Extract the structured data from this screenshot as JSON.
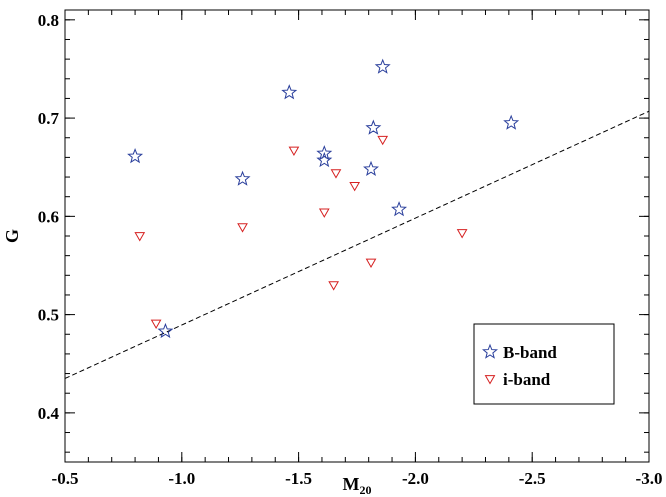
{
  "chart_data": {
    "type": "scatter",
    "xlabel": "M",
    "xlabel_sub": "20",
    "ylabel": "G",
    "xlim": [
      -0.5,
      -3.0
    ],
    "ylim": [
      0.35,
      0.81
    ],
    "x_axis_reversed": true,
    "x_ticks": [
      -0.5,
      -1.0,
      -1.5,
      -2.0,
      -2.5,
      -3.0
    ],
    "x_tick_labels": [
      "-0.5",
      "-1.0",
      "-1.5",
      "-2.0",
      "-2.5",
      "-3.0"
    ],
    "y_ticks": [
      0.4,
      0.5,
      0.6,
      0.7,
      0.8
    ],
    "y_tick_labels": [
      "0.4",
      "0.5",
      "0.6",
      "0.7",
      "0.8"
    ],
    "grid": false,
    "legend_position": "bottom-right",
    "series": [
      {
        "name": "B-band",
        "marker": "star",
        "color": "#2a3f9c",
        "points": [
          {
            "x": -0.8,
            "y": 0.661
          },
          {
            "x": -0.93,
            "y": 0.483
          },
          {
            "x": -1.26,
            "y": 0.638
          },
          {
            "x": -1.46,
            "y": 0.726
          },
          {
            "x": -1.61,
            "y": 0.664
          },
          {
            "x": -1.61,
            "y": 0.657
          },
          {
            "x": -1.81,
            "y": 0.648
          },
          {
            "x": -1.82,
            "y": 0.69
          },
          {
            "x": -1.86,
            "y": 0.752
          },
          {
            "x": -1.93,
            "y": 0.607
          },
          {
            "x": -2.41,
            "y": 0.695
          }
        ]
      },
      {
        "name": "i-band",
        "marker": "triangle-down",
        "color": "#d62020",
        "points": [
          {
            "x": -0.82,
            "y": 0.58
          },
          {
            "x": -0.89,
            "y": 0.491
          },
          {
            "x": -1.26,
            "y": 0.589
          },
          {
            "x": -1.48,
            "y": 0.667
          },
          {
            "x": -1.61,
            "y": 0.604
          },
          {
            "x": -1.65,
            "y": 0.53
          },
          {
            "x": -1.66,
            "y": 0.644
          },
          {
            "x": -1.74,
            "y": 0.631
          },
          {
            "x": -1.81,
            "y": 0.553
          },
          {
            "x": -1.86,
            "y": 0.678
          },
          {
            "x": -2.2,
            "y": 0.583
          }
        ]
      }
    ],
    "reference_line": {
      "style": "dashed",
      "points": [
        {
          "x": -0.5,
          "y": 0.435
        },
        {
          "x": -3.0,
          "y": 0.707
        }
      ]
    }
  }
}
